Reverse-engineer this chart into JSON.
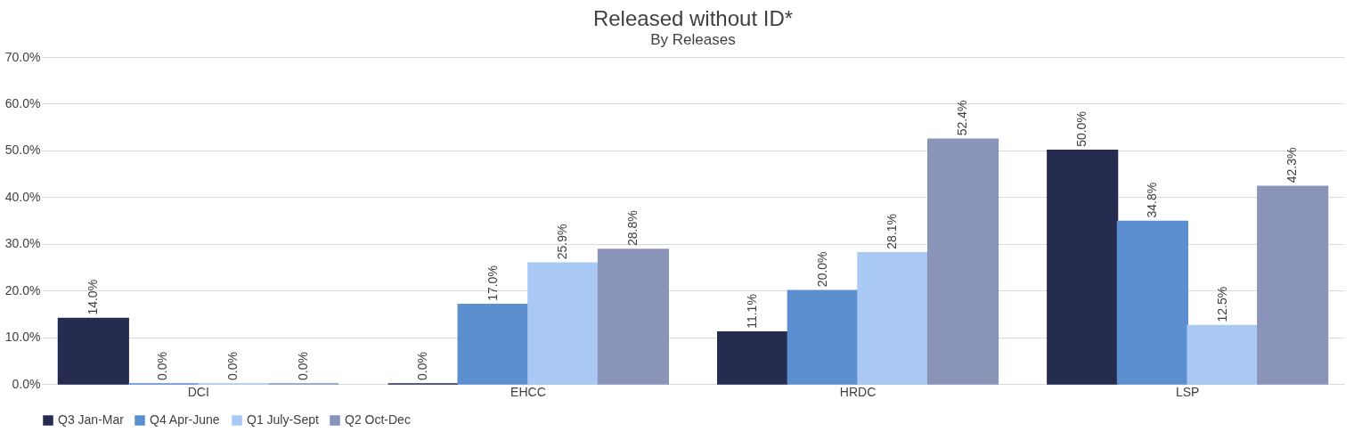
{
  "chart_data": {
    "type": "bar",
    "title": "Released without ID*",
    "subtitle": "By Releases",
    "categories": [
      "DCI",
      "EHCC",
      "HRDC",
      "LSP"
    ],
    "series": [
      {
        "name": "Q3 Jan-Mar",
        "color": "#262b50",
        "values": [
          14.0,
          0.0,
          11.1,
          50.0
        ],
        "value_labels": [
          "14.0%",
          "0.0%",
          "11.1%",
          "50.0%"
        ]
      },
      {
        "name": "Q4 Apr-June",
        "color": "#5b8fd0",
        "values": [
          0.0,
          17.0,
          20.0,
          34.8
        ],
        "value_labels": [
          "0.0%",
          "17.0%",
          "20.0%",
          "34.8%"
        ]
      },
      {
        "name": "Q1 July-Sept",
        "color": "#a9c8f4",
        "values": [
          0.0,
          25.9,
          28.1,
          12.5
        ],
        "value_labels": [
          "0.0%",
          "25.9%",
          "28.1%",
          "12.5%"
        ]
      },
      {
        "name": "Q2 Oct-Dec",
        "color": "#8a94b8",
        "values": [
          0.0,
          28.8,
          52.4,
          42.3
        ],
        "value_labels": [
          "0.0%",
          "28.8%",
          "52.4%",
          "42.3%"
        ]
      }
    ],
    "ylim": [
      0,
      70
    ],
    "yticks": [
      {
        "value": 0,
        "label": "0.0%"
      },
      {
        "value": 10,
        "label": "10.0%"
      },
      {
        "value": 20,
        "label": "20.0%"
      },
      {
        "value": 30,
        "label": "30.0%"
      },
      {
        "value": 40,
        "label": "40.0%"
      },
      {
        "value": 50,
        "label": "50.0%"
      },
      {
        "value": 60,
        "label": "60.0%"
      },
      {
        "value": 70,
        "label": "70.0%"
      }
    ],
    "grid": "y",
    "legend": "bottom"
  }
}
